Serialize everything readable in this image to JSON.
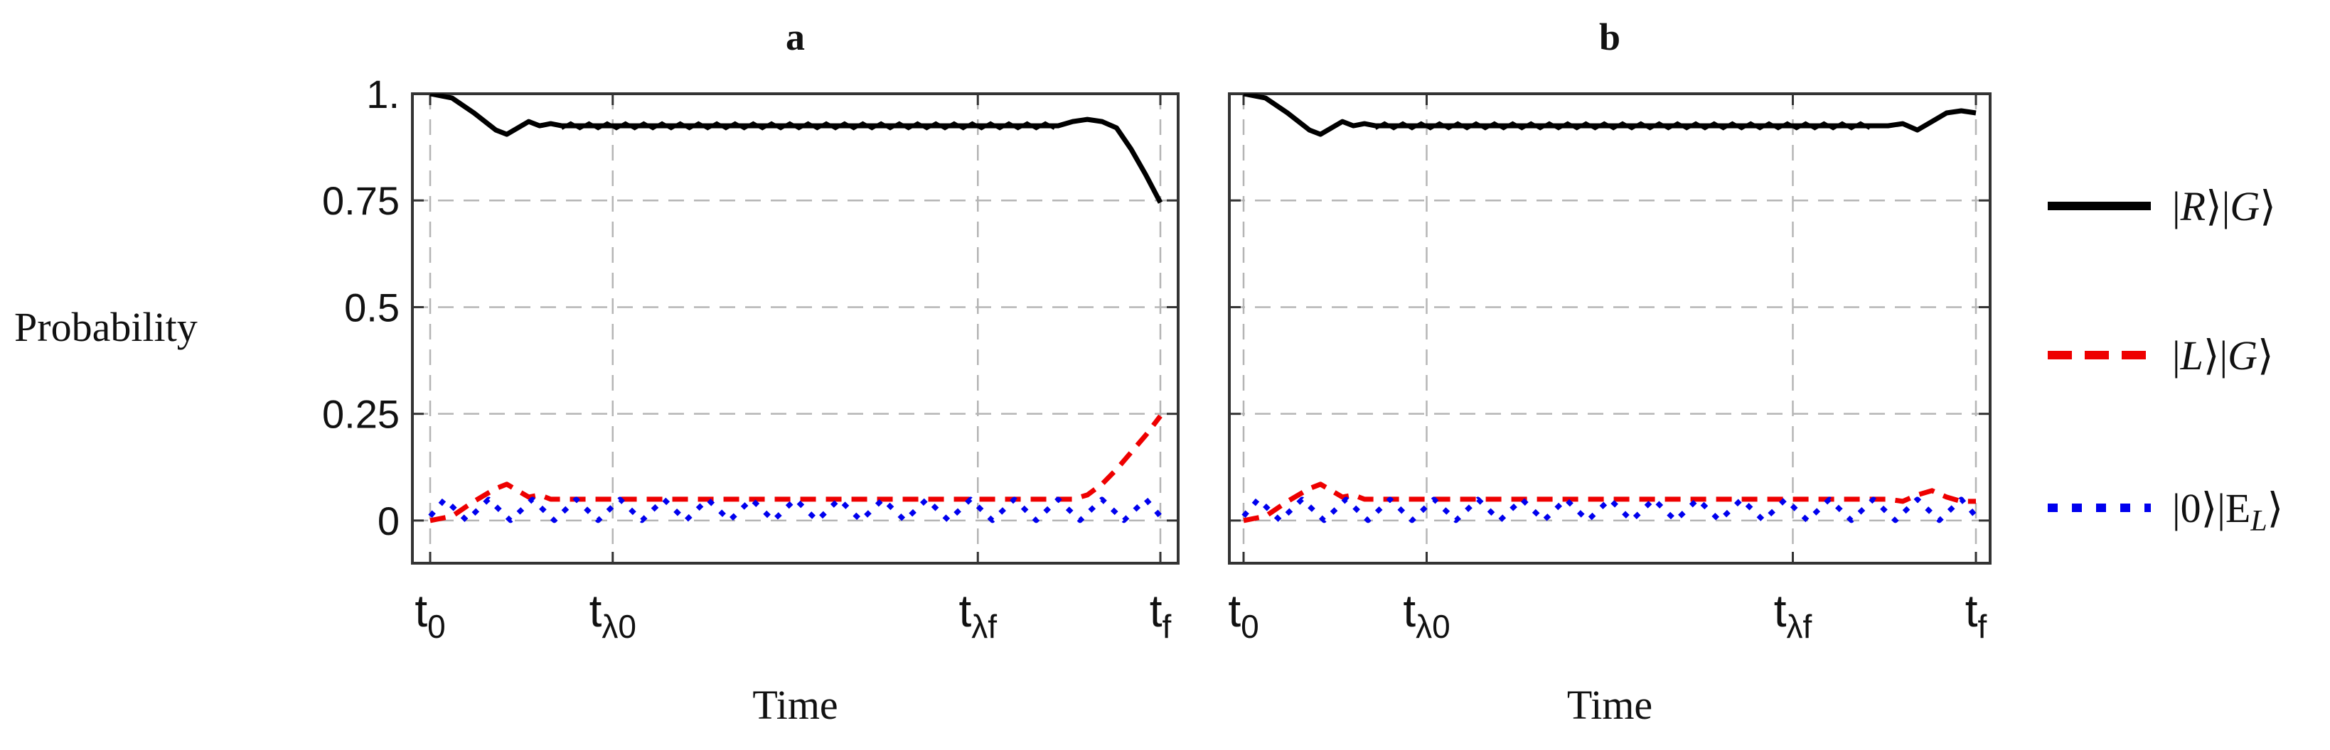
{
  "figure": {
    "ylabel": "Probability",
    "legend_position": "right"
  },
  "legend": [
    {
      "key": "RG",
      "ket1": "R",
      "ket2": "G",
      "color": "#000000",
      "style": "solid"
    },
    {
      "key": "LG",
      "ket1": "L",
      "ket2": "G",
      "color": "#ee0000",
      "style": "dashed"
    },
    {
      "key": "0E",
      "ket1": "0",
      "ket2": "E",
      "ket2_sub": "L",
      "color": "#0000ee",
      "style": "dotted"
    }
  ],
  "chart_data": [
    {
      "type": "line",
      "title": "a",
      "xlabel": "Time",
      "ylabel": "Probability",
      "grid": true,
      "ylim": [
        -0.1,
        1.0
      ],
      "xlim": [
        0,
        100
      ],
      "x_ticks": [
        {
          "x": 0,
          "base": "t",
          "sub": "0"
        },
        {
          "x": 25,
          "base": "t",
          "sub": "λ0"
        },
        {
          "x": 75,
          "base": "t",
          "sub": "λf"
        },
        {
          "x": 100,
          "base": "t",
          "sub": "f"
        }
      ],
      "y_ticks": [
        {
          "y": 0,
          "label": "0"
        },
        {
          "y": 0.25,
          "label": "0.25"
        },
        {
          "y": 0.5,
          "label": "0.5"
        },
        {
          "y": 0.75,
          "label": "0.75"
        },
        {
          "y": 1.0,
          "label": "1."
        }
      ],
      "series": [
        {
          "key": "RG",
          "x": [
            0,
            3,
            6,
            9,
            10.5,
            12,
            13.5,
            15,
            16.5,
            18,
            30,
            50,
            70,
            86,
            88,
            90,
            92,
            94,
            96,
            98,
            100
          ],
          "y": [
            1.0,
            0.99,
            0.955,
            0.915,
            0.905,
            0.92,
            0.935,
            0.925,
            0.93,
            0.925,
            0.925,
            0.925,
            0.925,
            0.925,
            0.935,
            0.94,
            0.935,
            0.92,
            0.87,
            0.81,
            0.745
          ]
        },
        {
          "key": "LG",
          "x": [
            0,
            3,
            6,
            9,
            10.5,
            12,
            13.5,
            15,
            16.5,
            18,
            30,
            50,
            70,
            86,
            88,
            90,
            92,
            94,
            96,
            98,
            100
          ],
          "y": [
            0.0,
            0.01,
            0.045,
            0.075,
            0.085,
            0.07,
            0.055,
            0.06,
            0.05,
            0.05,
            0.05,
            0.05,
            0.05,
            0.05,
            0.05,
            0.06,
            0.085,
            0.12,
            0.16,
            0.2,
            0.245
          ]
        },
        {
          "key": "0E",
          "x": [
            0,
            100
          ],
          "y": [
            0.01,
            0.01
          ],
          "oscillate": {
            "start": 2,
            "end": 98,
            "step": 3,
            "low": 0.0,
            "high": 0.05
          }
        }
      ]
    },
    {
      "type": "line",
      "title": "b",
      "xlabel": "Time",
      "ylabel": "Probability",
      "grid": true,
      "ylim": [
        -0.1,
        1.0
      ],
      "xlim": [
        0,
        100
      ],
      "x_ticks": [
        {
          "x": 0,
          "base": "t",
          "sub": "0"
        },
        {
          "x": 25,
          "base": "t",
          "sub": "λ0"
        },
        {
          "x": 75,
          "base": "t",
          "sub": "λf"
        },
        {
          "x": 100,
          "base": "t",
          "sub": "f"
        }
      ],
      "y_ticks": [
        {
          "y": 0,
          "label": ""
        },
        {
          "y": 0.25,
          "label": ""
        },
        {
          "y": 0.5,
          "label": ""
        },
        {
          "y": 0.75,
          "label": ""
        },
        {
          "y": 1.0,
          "label": ""
        }
      ],
      "series": [
        {
          "key": "RG",
          "x": [
            0,
            3,
            6,
            9,
            10.5,
            12,
            13.5,
            15,
            16.5,
            18,
            30,
            50,
            70,
            88,
            90,
            92,
            94,
            96,
            98,
            100
          ],
          "y": [
            1.0,
            0.99,
            0.955,
            0.915,
            0.905,
            0.92,
            0.935,
            0.925,
            0.93,
            0.925,
            0.925,
            0.925,
            0.925,
            0.925,
            0.93,
            0.915,
            0.935,
            0.955,
            0.96,
            0.955
          ]
        },
        {
          "key": "LG",
          "x": [
            0,
            3,
            6,
            9,
            10.5,
            12,
            13.5,
            15,
            16.5,
            18,
            30,
            50,
            70,
            88,
            90,
            92,
            94,
            96,
            98,
            100
          ],
          "y": [
            0.0,
            0.01,
            0.045,
            0.075,
            0.085,
            0.07,
            0.055,
            0.06,
            0.05,
            0.05,
            0.05,
            0.05,
            0.05,
            0.05,
            0.045,
            0.06,
            0.07,
            0.055,
            0.045,
            0.045
          ]
        },
        {
          "key": "0E",
          "x": [
            0,
            100
          ],
          "y": [
            0.01,
            0.01
          ],
          "oscillate": {
            "start": 2,
            "end": 98,
            "step": 3,
            "low": 0.0,
            "high": 0.05
          }
        }
      ]
    }
  ]
}
